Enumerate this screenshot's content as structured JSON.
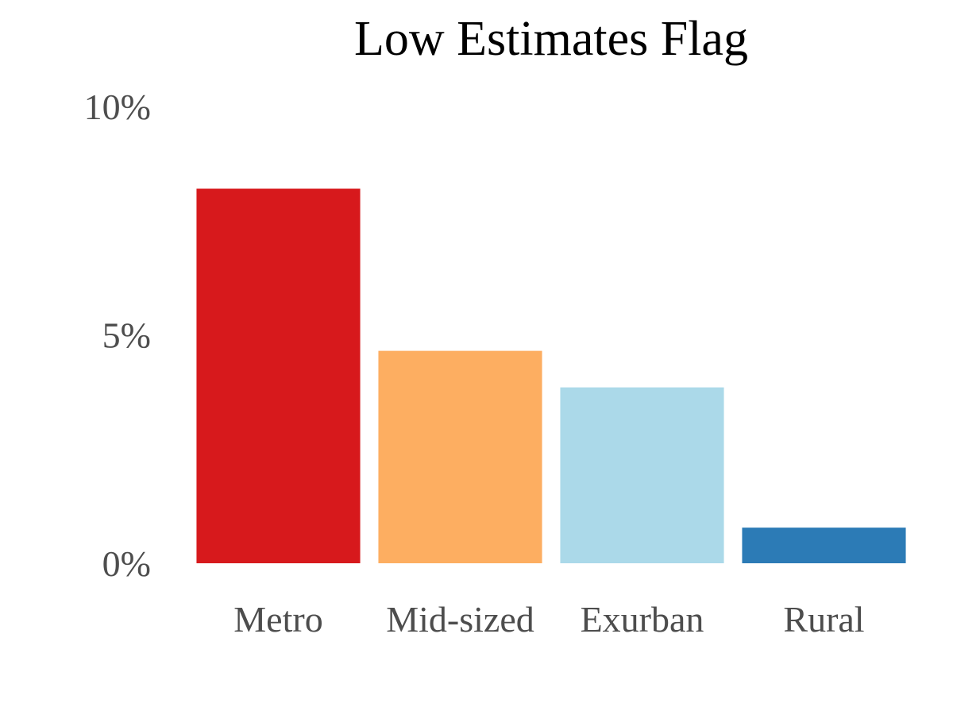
{
  "chart_data": {
    "type": "bar",
    "title": "Low Estimates Flag",
    "xlabel": "",
    "ylabel": "",
    "categories": [
      "Metro",
      "Mid-sized",
      "Exurban",
      "Rural"
    ],
    "values": [
      8.2,
      4.65,
      3.85,
      0.78
    ],
    "value_unit": "%",
    "colors": [
      "#d7191c",
      "#fdae61",
      "#abd9e9",
      "#2c7bb6"
    ],
    "ylim": [
      0,
      10
    ],
    "yticks": [
      0,
      5,
      10
    ],
    "ytick_labels": [
      "0%",
      "5%",
      "10%"
    ],
    "grid": false,
    "legend": "none"
  }
}
